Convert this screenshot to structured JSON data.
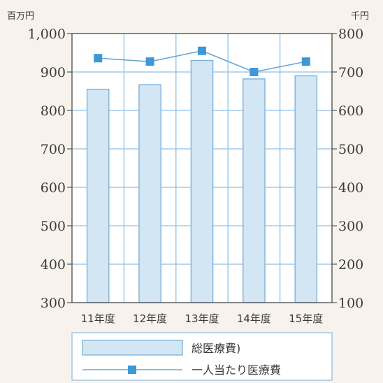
{
  "chart_data": {
    "type": "bar",
    "categories": [
      "11年度",
      "12年度",
      "13年度",
      "14年度",
      "15年度"
    ],
    "series": [
      {
        "name": "総医療費)",
        "type": "bar",
        "axis": "left",
        "values": [
          855,
          867,
          930,
          882,
          890
        ],
        "color": "#d3e6f3",
        "edge_color": "#7fb1da"
      },
      {
        "name": "一人当たり医療費",
        "type": "line",
        "axis": "right",
        "values": [
          736,
          727,
          755,
          700,
          727
        ],
        "color": "#3d97d9",
        "line_color": "#6aa7d6"
      }
    ],
    "left_axis": {
      "unit": "百万円",
      "ylim": [
        300,
        1000
      ],
      "ticks": [
        "1,000",
        "900",
        "800",
        "700",
        "600",
        "500",
        "400",
        "300"
      ]
    },
    "right_axis": {
      "unit": "千円",
      "ylim": [
        100,
        800
      ],
      "ticks": [
        "800",
        "700",
        "600",
        "500",
        "400",
        "300",
        "200",
        "100"
      ]
    },
    "grid": true,
    "legend_position": "bottom",
    "grid_color": "#8fc1e6"
  }
}
